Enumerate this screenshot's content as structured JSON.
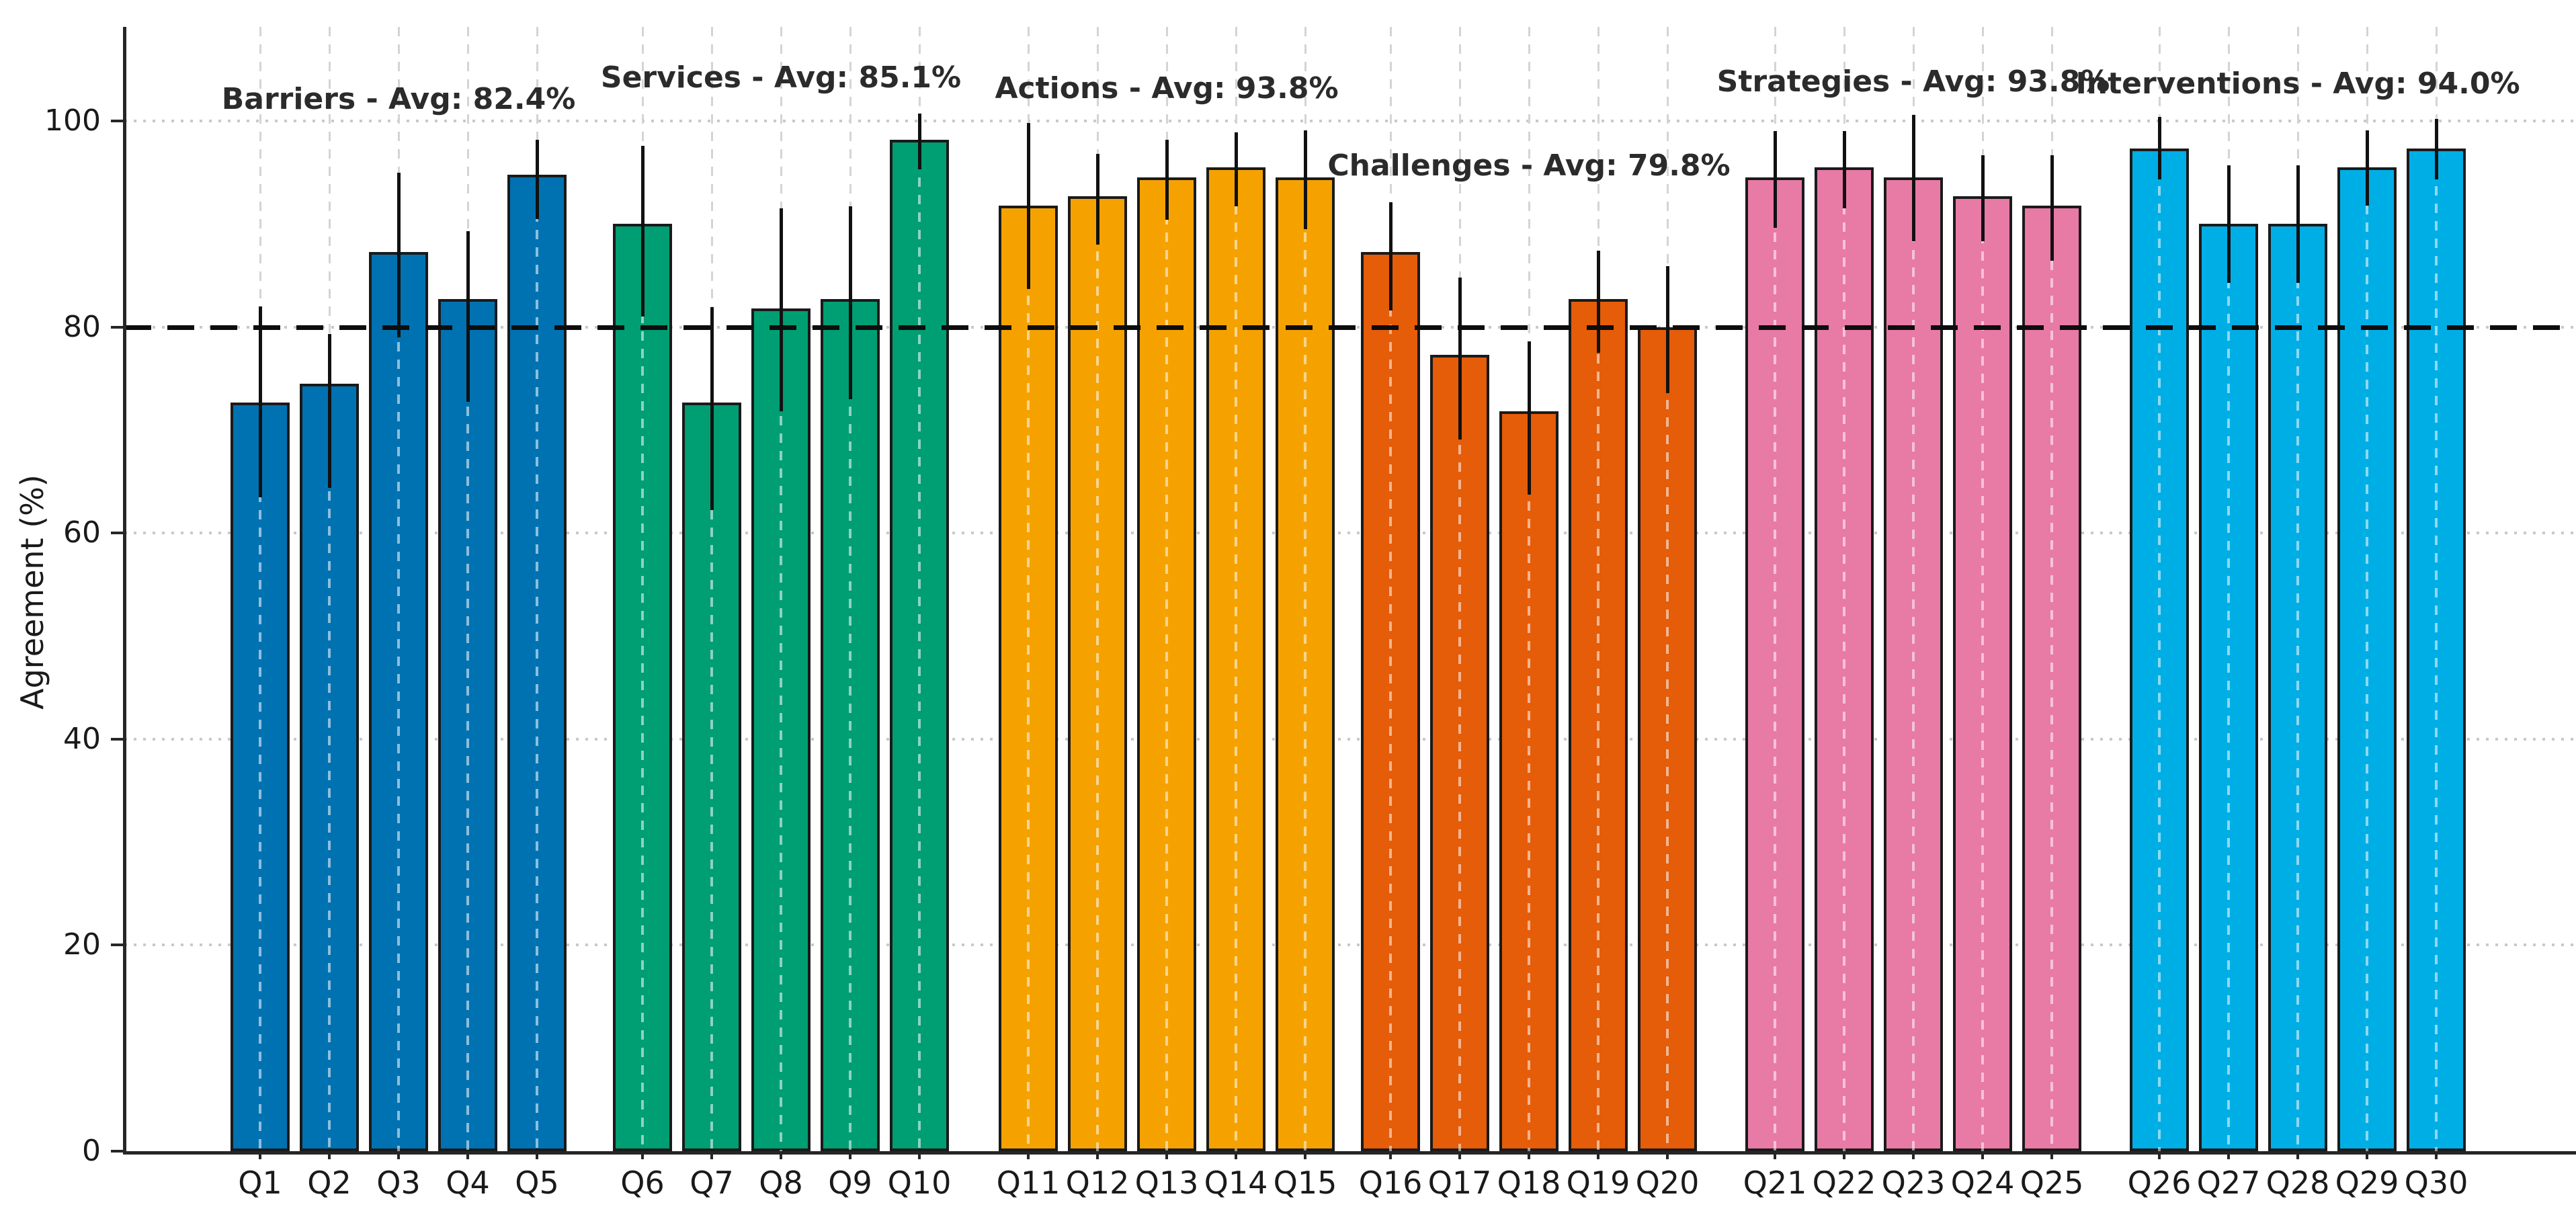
{
  "chart_data": {
    "type": "bar",
    "title": "",
    "xlabel": "",
    "ylabel": "Agreement (%)",
    "ylim": [
      0,
      109
    ],
    "yticks": [
      0,
      20,
      40,
      60,
      80,
      100
    ],
    "threshold_value": 80,
    "threshold_style": "dashed-black",
    "grid": true,
    "legend_position": "none",
    "bar_edge_color": "#1a1a1a",
    "error_bar_color": "#111111",
    "groups": [
      {
        "name": "Barriers",
        "title": "Barriers - Avg: 82.4%",
        "avg": 82.4,
        "color": "#0072B2",
        "categories": [
          "Q1",
          "Q2",
          "Q3",
          "Q4",
          "Q5"
        ],
        "values": [
          72.7,
          74.5,
          87.3,
          82.7,
          94.8
        ],
        "err_low": [
          63.5,
          64.4,
          79.0,
          72.7,
          90.5
        ],
        "err_high": [
          82.0,
          79.3,
          95.0,
          89.3,
          98.2
        ]
      },
      {
        "name": "Services",
        "title": "Services - Avg: 85.1%",
        "avg": 85.1,
        "color": "#009E73",
        "categories": [
          "Q6",
          "Q7",
          "Q8",
          "Q9",
          "Q10"
        ],
        "values": [
          90.0,
          72.7,
          81.8,
          82.7,
          98.2
        ],
        "err_low": [
          81.0,
          62.2,
          71.8,
          73.0,
          95.3
        ],
        "err_high": [
          97.6,
          81.9,
          91.5,
          91.7,
          100.7
        ]
      },
      {
        "name": "Actions",
        "title": "Actions - Avg: 93.8%",
        "avg": 93.8,
        "color": "#F5A201",
        "categories": [
          "Q11",
          "Q12",
          "Q13",
          "Q14",
          "Q15"
        ],
        "values": [
          91.8,
          92.7,
          94.5,
          95.5,
          94.5
        ],
        "err_low": [
          83.7,
          88.0,
          90.4,
          91.7,
          89.5
        ],
        "err_high": [
          99.8,
          96.8,
          98.2,
          98.9,
          99.1
        ]
      },
      {
        "name": "Challenges",
        "title": "Challenges - Avg: 79.8%",
        "avg": 79.8,
        "color": "#E55C09",
        "categories": [
          "Q16",
          "Q17",
          "Q18",
          "Q19",
          "Q20"
        ],
        "values": [
          87.3,
          77.3,
          71.8,
          82.7,
          80.0
        ],
        "err_low": [
          81.6,
          69.1,
          63.7,
          77.5,
          73.6
        ],
        "err_high": [
          92.1,
          84.8,
          78.6,
          87.4,
          85.9
        ]
      },
      {
        "name": "Strategies",
        "title": "Strategies - Avg: 93.8%",
        "avg": 93.8,
        "color": "#E87AA6",
        "categories": [
          "Q21",
          "Q22",
          "Q23",
          "Q24",
          "Q25"
        ],
        "values": [
          94.5,
          95.5,
          94.5,
          92.7,
          91.8
        ],
        "err_low": [
          89.6,
          91.5,
          88.3,
          88.3,
          86.4
        ],
        "err_high": [
          99.0,
          99.0,
          100.6,
          96.7,
          96.7
        ]
      },
      {
        "name": "Interventions",
        "title": "Interventions - Avg: 94.0%",
        "avg": 94.0,
        "color": "#00AEE6",
        "categories": [
          "Q26",
          "Q27",
          "Q28",
          "Q29",
          "Q30"
        ],
        "values": [
          97.3,
          90.0,
          90.0,
          95.5,
          97.3
        ],
        "err_low": [
          94.3,
          84.3,
          84.3,
          91.8,
          94.3
        ],
        "err_high": [
          100.4,
          95.7,
          95.7,
          99.1,
          100.2
        ]
      }
    ]
  }
}
